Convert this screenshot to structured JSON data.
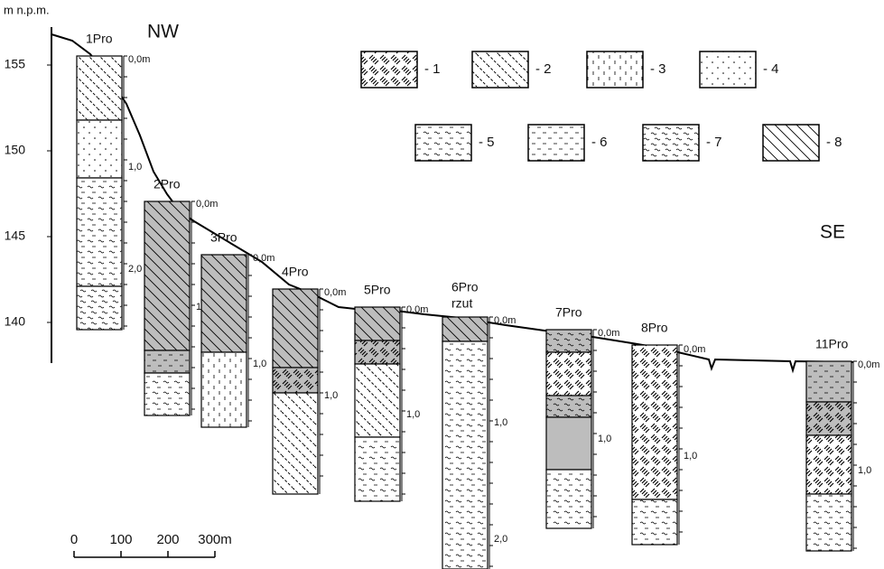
{
  "axis": {
    "label": "m n.p.m.",
    "ticks": [
      "155",
      "150",
      "145",
      "140"
    ]
  },
  "directions": {
    "left": "NW",
    "right": "SE"
  },
  "legend": [
    "- 1",
    "- 2",
    "- 3",
    "- 4",
    "- 5",
    "- 6",
    "- 7",
    "- 8"
  ],
  "scale": [
    "0",
    "100",
    "200",
    "300m"
  ],
  "profiles": [
    {
      "name": "1Pro",
      "depth_labels": [
        "0,0m",
        "1,0",
        "2,0"
      ]
    },
    {
      "name": "2Pro",
      "depth_labels": [
        "0,0m",
        "1"
      ]
    },
    {
      "name": "3Pro",
      "depth_labels": [
        "0,0m",
        "1,0"
      ]
    },
    {
      "name": "4Pro",
      "depth_labels": [
        "0,0m",
        "1,0"
      ]
    },
    {
      "name": "5Pro",
      "depth_labels": [
        "0,0m",
        "1,0"
      ]
    },
    {
      "name": "6Pro",
      "sublabel": "rzut",
      "depth_labels": [
        "0,0m",
        "1,0",
        "2,0"
      ]
    },
    {
      "name": "7Pro",
      "depth_labels": [
        "0,0m",
        "1,0"
      ]
    },
    {
      "name": "8Pro",
      "depth_labels": [
        "0,0m",
        "1,0"
      ]
    },
    {
      "name": "11Pro",
      "depth_labels": [
        "0,0m",
        "1,0"
      ]
    }
  ]
}
